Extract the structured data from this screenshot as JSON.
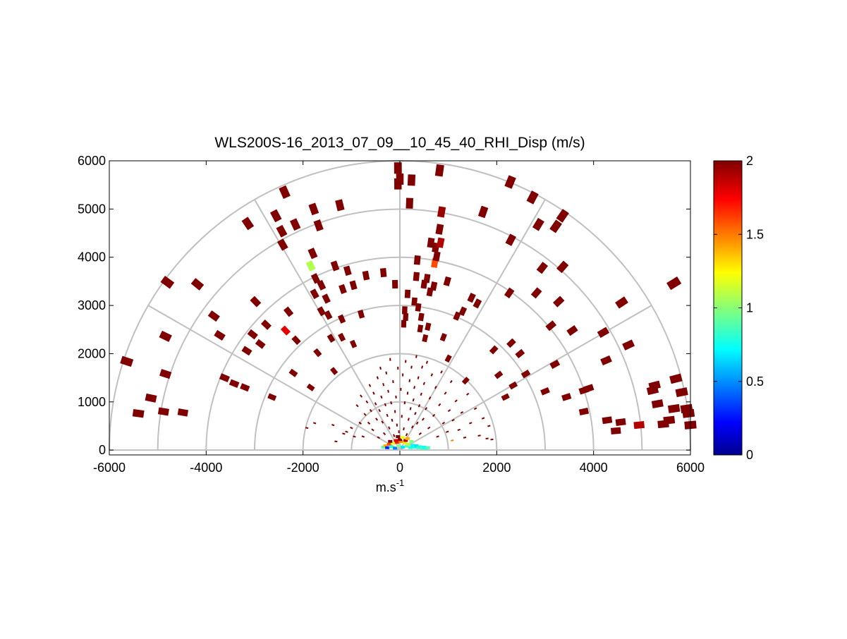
{
  "chart_data": {
    "type": "polar_rhi_scatter",
    "title": "WLS200S-16_2013_07_09__10_45_40_RHI_Disp (m/s)",
    "xlabel_base": "m.s",
    "xlabel_sup": "-1",
    "xlim": [
      -6000,
      6000
    ],
    "ylim": [
      -100,
      6000
    ],
    "xticks": [
      -6000,
      -4000,
      -2000,
      0,
      2000,
      4000,
      6000
    ],
    "yticks": [
      0,
      1000,
      2000,
      3000,
      4000,
      5000,
      6000
    ],
    "range_rings": [
      1000,
      2000,
      3000,
      4000,
      5000,
      6000
    ],
    "spoke_angles_deg": [
      0,
      30,
      60,
      90,
      120,
      150,
      180
    ],
    "grid": true,
    "colorbar": {
      "min": 0,
      "max": 2,
      "ticks": [
        "0",
        "0.5",
        "1",
        "1.5",
        "2"
      ],
      "colormap": "jet"
    },
    "colors": {
      "high_value": "#800000",
      "grid": "#c0c0c0"
    },
    "points": [
      {
        "x": -5640,
        "y": 1840,
        "v": 2
      },
      {
        "x": -5400,
        "y": 760,
        "v": 2
      },
      {
        "x": -5140,
        "y": 1080,
        "v": 2
      },
      {
        "x": -4880,
        "y": 800,
        "v": 2
      },
      {
        "x": -4840,
        "y": 1580,
        "v": 2
      },
      {
        "x": -4840,
        "y": 2360,
        "v": 2
      },
      {
        "x": -4800,
        "y": 3480,
        "v": 2
      },
      {
        "x": -4480,
        "y": 780,
        "v": 2
      },
      {
        "x": -4180,
        "y": 3440,
        "v": 2
      },
      {
        "x": -3840,
        "y": 2780,
        "v": 2
      },
      {
        "x": -3720,
        "y": 2380,
        "v": 2
      },
      {
        "x": -3620,
        "y": 1500,
        "v": 2
      },
      {
        "x": -3420,
        "y": 1380,
        "v": 2
      },
      {
        "x": -3200,
        "y": 1300,
        "v": 2
      },
      {
        "x": -3160,
        "y": 2060,
        "v": 2
      },
      {
        "x": -3140,
        "y": 4700,
        "v": 2
      },
      {
        "x": -3040,
        "y": 2400,
        "v": 2
      },
      {
        "x": -2980,
        "y": 3080,
        "v": 2
      },
      {
        "x": -2880,
        "y": 2200,
        "v": 2
      },
      {
        "x": -2760,
        "y": 2600,
        "v": 2
      },
      {
        "x": -2640,
        "y": 1100,
        "v": 2
      },
      {
        "x": -2560,
        "y": 4860,
        "v": 2
      },
      {
        "x": -2440,
        "y": 4540,
        "v": 2
      },
      {
        "x": -2420,
        "y": 4260,
        "v": 2
      },
      {
        "x": -2380,
        "y": 5350,
        "v": 2
      },
      {
        "x": -2360,
        "y": 2480,
        "v": 1.8
      },
      {
        "x": -2300,
        "y": 2870,
        "v": 2
      },
      {
        "x": -2200,
        "y": 1600,
        "v": 2
      },
      {
        "x": -2160,
        "y": 4680,
        "v": 2
      },
      {
        "x": -2140,
        "y": 2280,
        "v": 2
      },
      {
        "x": -1840,
        "y": 1300,
        "v": 2
      },
      {
        "x": -1840,
        "y": 3820,
        "v": 1.1
      },
      {
        "x": -1800,
        "y": 4080,
        "v": 2
      },
      {
        "x": -1780,
        "y": 5000,
        "v": 2
      },
      {
        "x": -1760,
        "y": 3240,
        "v": 2
      },
      {
        "x": -1740,
        "y": 3560,
        "v": 2
      },
      {
        "x": -1700,
        "y": 2020,
        "v": 2
      },
      {
        "x": -1680,
        "y": 4660,
        "v": 2
      },
      {
        "x": -1620,
        "y": 3420,
        "v": 2
      },
      {
        "x": -1620,
        "y": 2880,
        "v": 2
      },
      {
        "x": -1520,
        "y": 3140,
        "v": 2
      },
      {
        "x": -1480,
        "y": 2800,
        "v": 2
      },
      {
        "x": -1420,
        "y": 2320,
        "v": 2
      },
      {
        "x": -1360,
        "y": 1640,
        "v": 2
      },
      {
        "x": -1340,
        "y": 3820,
        "v": 2
      },
      {
        "x": -1240,
        "y": 5080,
        "v": 2
      },
      {
        "x": -1200,
        "y": 2720,
        "v": 2
      },
      {
        "x": -1200,
        "y": 2340,
        "v": 2
      },
      {
        "x": -1180,
        "y": 3340,
        "v": 2
      },
      {
        "x": -1080,
        "y": 3720,
        "v": 2
      },
      {
        "x": -960,
        "y": 3420,
        "v": 2
      },
      {
        "x": -960,
        "y": 2200,
        "v": 2
      },
      {
        "x": -800,
        "y": 2820,
        "v": 2
      },
      {
        "x": -700,
        "y": 3620,
        "v": 2
      },
      {
        "x": -340,
        "y": 3680,
        "v": 2
      },
      {
        "x": -100,
        "y": 3440,
        "v": 2
      },
      {
        "x": -40,
        "y": 5850,
        "v": 2
      },
      {
        "x": -40,
        "y": 5520,
        "v": 2
      },
      {
        "x": 0,
        "y": 5620,
        "v": 2
      },
      {
        "x": 80,
        "y": 2620,
        "v": 2
      },
      {
        "x": 100,
        "y": 2900,
        "v": 2
      },
      {
        "x": 120,
        "y": 2760,
        "v": 2
      },
      {
        "x": 160,
        "y": 3240,
        "v": 2
      },
      {
        "x": 200,
        "y": 5120,
        "v": 2
      },
      {
        "x": 240,
        "y": 5600,
        "v": 2
      },
      {
        "x": 300,
        "y": 3080,
        "v": 2
      },
      {
        "x": 340,
        "y": 3600,
        "v": 2
      },
      {
        "x": 360,
        "y": 3940,
        "v": 2
      },
      {
        "x": 380,
        "y": 2960,
        "v": 2
      },
      {
        "x": 420,
        "y": 2520,
        "v": 2
      },
      {
        "x": 440,
        "y": 2760,
        "v": 2
      },
      {
        "x": 500,
        "y": 3440,
        "v": 2
      },
      {
        "x": 520,
        "y": 2320,
        "v": 2
      },
      {
        "x": 560,
        "y": 3560,
        "v": 2
      },
      {
        "x": 580,
        "y": 2560,
        "v": 2
      },
      {
        "x": 620,
        "y": 3280,
        "v": 2
      },
      {
        "x": 640,
        "y": 4300,
        "v": 2
      },
      {
        "x": 700,
        "y": 3400,
        "v": 2
      },
      {
        "x": 720,
        "y": 3880,
        "v": 1.6
      },
      {
        "x": 740,
        "y": 4200,
        "v": 2
      },
      {
        "x": 760,
        "y": 4020,
        "v": 2
      },
      {
        "x": 820,
        "y": 5800,
        "v": 2
      },
      {
        "x": 820,
        "y": 4580,
        "v": 2
      },
      {
        "x": 840,
        "y": 4300,
        "v": 1.9
      },
      {
        "x": 860,
        "y": 4940,
        "v": 1.95
      },
      {
        "x": 900,
        "y": 2340,
        "v": 2
      },
      {
        "x": 980,
        "y": 3500,
        "v": 2
      },
      {
        "x": 1000,
        "y": 1900,
        "v": 2
      },
      {
        "x": 1180,
        "y": 2780,
        "v": 2
      },
      {
        "x": 1300,
        "y": 2880,
        "v": 2
      },
      {
        "x": 1360,
        "y": 1440,
        "v": 2
      },
      {
        "x": 1480,
        "y": 3160,
        "v": 2
      },
      {
        "x": 1600,
        "y": 3040,
        "v": 2
      },
      {
        "x": 1720,
        "y": 4940,
        "v": 2
      },
      {
        "x": 1940,
        "y": 2080,
        "v": 2
      },
      {
        "x": 2040,
        "y": 1560,
        "v": 2
      },
      {
        "x": 2180,
        "y": 1100,
        "v": 2
      },
      {
        "x": 2280,
        "y": 5560,
        "v": 2
      },
      {
        "x": 2340,
        "y": 1340,
        "v": 2
      },
      {
        "x": 2300,
        "y": 2220,
        "v": 2
      },
      {
        "x": 2260,
        "y": 3260,
        "v": 2
      },
      {
        "x": 2290,
        "y": 4360,
        "v": 2
      },
      {
        "x": 2480,
        "y": 2000,
        "v": 2
      },
      {
        "x": 2600,
        "y": 1580,
        "v": 2
      },
      {
        "x": 2740,
        "y": 5240,
        "v": 2
      },
      {
        "x": 2820,
        "y": 3260,
        "v": 2
      },
      {
        "x": 2860,
        "y": 4680,
        "v": 2
      },
      {
        "x": 2940,
        "y": 3780,
        "v": 2
      },
      {
        "x": 3000,
        "y": 1220,
        "v": 2
      },
      {
        "x": 3120,
        "y": 2580,
        "v": 2
      },
      {
        "x": 3200,
        "y": 1780,
        "v": 2
      },
      {
        "x": 3220,
        "y": 4640,
        "v": 2
      },
      {
        "x": 3280,
        "y": 3080,
        "v": 2
      },
      {
        "x": 3360,
        "y": 4860,
        "v": 2
      },
      {
        "x": 3360,
        "y": 3800,
        "v": 2
      },
      {
        "x": 3440,
        "y": 1100,
        "v": 2
      },
      {
        "x": 3560,
        "y": 2480,
        "v": 2
      },
      {
        "x": 3800,
        "y": 1240,
        "v": 2
      },
      {
        "x": 3800,
        "y": 800,
        "v": 2
      },
      {
        "x": 3900,
        "y": 1280,
        "v": 2
      },
      {
        "x": 4200,
        "y": 2440,
        "v": 2
      },
      {
        "x": 4260,
        "y": 1860,
        "v": 2
      },
      {
        "x": 4280,
        "y": 620,
        "v": 2
      },
      {
        "x": 4460,
        "y": 400,
        "v": 2
      },
      {
        "x": 4560,
        "y": 580,
        "v": 2
      },
      {
        "x": 4580,
        "y": 3060,
        "v": 2
      },
      {
        "x": 4720,
        "y": 2180,
        "v": 2
      },
      {
        "x": 5220,
        "y": 1240,
        "v": 2
      },
      {
        "x": 5260,
        "y": 1340,
        "v": 2
      },
      {
        "x": 5320,
        "y": 960,
        "v": 2
      },
      {
        "x": 5440,
        "y": 540,
        "v": 2
      },
      {
        "x": 5560,
        "y": 620,
        "v": 2
      },
      {
        "x": 5660,
        "y": 860,
        "v": 2
      },
      {
        "x": 5660,
        "y": 3460,
        "v": 2
      },
      {
        "x": 5700,
        "y": 1480,
        "v": 2
      },
      {
        "x": 5820,
        "y": 1200,
        "v": 2
      },
      {
        "x": 5920,
        "y": 860,
        "v": 2
      },
      {
        "x": 5960,
        "y": 760,
        "v": 2
      },
      {
        "x": 4940,
        "y": 520,
        "v": 1.9
      },
      {
        "x": 6000,
        "y": 520,
        "v": 2
      }
    ],
    "near_field_points": [
      {
        "x": -1160,
        "y": 340,
        "v": 2
      },
      {
        "x": -1100,
        "y": 380,
        "v": 2
      },
      {
        "x": -1000,
        "y": 460,
        "v": 2
      },
      {
        "x": -940,
        "y": 280,
        "v": 2
      },
      {
        "x": -880,
        "y": 920,
        "v": 2
      },
      {
        "x": -820,
        "y": 560,
        "v": 2
      },
      {
        "x": -800,
        "y": 1120,
        "v": 2
      },
      {
        "x": -760,
        "y": 280,
        "v": 2
      },
      {
        "x": -720,
        "y": 740,
        "v": 2
      },
      {
        "x": -680,
        "y": 1000,
        "v": 2
      },
      {
        "x": -640,
        "y": 560,
        "v": 2
      },
      {
        "x": -620,
        "y": 1340,
        "v": 2
      },
      {
        "x": -600,
        "y": 820,
        "v": 2
      },
      {
        "x": -560,
        "y": 420,
        "v": 2
      },
      {
        "x": -540,
        "y": 1180,
        "v": 2
      },
      {
        "x": -500,
        "y": 960,
        "v": 2
      },
      {
        "x": -480,
        "y": 640,
        "v": 2
      },
      {
        "x": -460,
        "y": 1500,
        "v": 2
      },
      {
        "x": -440,
        "y": 260,
        "v": 2
      },
      {
        "x": -420,
        "y": 820,
        "v": 2
      },
      {
        "x": -400,
        "y": 1700,
        "v": 2
      },
      {
        "x": -380,
        "y": 1100,
        "v": 2
      },
      {
        "x": -360,
        "y": 580,
        "v": 2
      },
      {
        "x": -340,
        "y": 1360,
        "v": 2
      },
      {
        "x": -320,
        "y": 340,
        "v": 2
      },
      {
        "x": -300,
        "y": 940,
        "v": 2
      },
      {
        "x": -280,
        "y": 1600,
        "v": 2
      },
      {
        "x": -260,
        "y": 720,
        "v": 2
      },
      {
        "x": -240,
        "y": 1220,
        "v": 2
      },
      {
        "x": -220,
        "y": 460,
        "v": 2
      },
      {
        "x": -200,
        "y": 1880,
        "v": 2
      },
      {
        "x": -180,
        "y": 980,
        "v": 2
      },
      {
        "x": -160,
        "y": 620,
        "v": 2
      },
      {
        "x": -140,
        "y": 1420,
        "v": 2
      },
      {
        "x": -120,
        "y": 300,
        "v": 2
      },
      {
        "x": -100,
        "y": 800,
        "v": 2
      },
      {
        "x": -80,
        "y": 1100,
        "v": 2
      },
      {
        "x": -60,
        "y": 520,
        "v": 2
      },
      {
        "x": -40,
        "y": 1700,
        "v": 2
      },
      {
        "x": -20,
        "y": 380,
        "v": 2
      },
      {
        "x": 20,
        "y": 1260,
        "v": 2
      },
      {
        "x": 40,
        "y": 700,
        "v": 2
      },
      {
        "x": 60,
        "y": 1560,
        "v": 2
      },
      {
        "x": 80,
        "y": 440,
        "v": 2
      },
      {
        "x": 100,
        "y": 980,
        "v": 2
      },
      {
        "x": 120,
        "y": 1840,
        "v": 2
      },
      {
        "x": 140,
        "y": 320,
        "v": 2
      },
      {
        "x": 160,
        "y": 1180,
        "v": 2
      },
      {
        "x": 180,
        "y": 640,
        "v": 2
      },
      {
        "x": 200,
        "y": 1440,
        "v": 2
      },
      {
        "x": 220,
        "y": 860,
        "v": 2
      },
      {
        "x": 240,
        "y": 1720,
        "v": 2
      },
      {
        "x": 260,
        "y": 480,
        "v": 2
      },
      {
        "x": 280,
        "y": 1040,
        "v": 2
      },
      {
        "x": 300,
        "y": 1300,
        "v": 2
      },
      {
        "x": 320,
        "y": 760,
        "v": 2
      },
      {
        "x": 340,
        "y": 1940,
        "v": 2
      },
      {
        "x": 360,
        "y": 560,
        "v": 2
      },
      {
        "x": 380,
        "y": 1500,
        "v": 2
      },
      {
        "x": 400,
        "y": 920,
        "v": 2
      },
      {
        "x": 420,
        "y": 340,
        "v": 2
      },
      {
        "x": 440,
        "y": 1160,
        "v": 2
      },
      {
        "x": 460,
        "y": 1720,
        "v": 2
      },
      {
        "x": 480,
        "y": 640,
        "v": 2
      },
      {
        "x": 500,
        "y": 1380,
        "v": 2
      },
      {
        "x": 540,
        "y": 860,
        "v": 2
      },
      {
        "x": 560,
        "y": 1820,
        "v": 2
      },
      {
        "x": 600,
        "y": 460,
        "v": 2
      },
      {
        "x": 620,
        "y": 1080,
        "v": 2
      },
      {
        "x": 660,
        "y": 1560,
        "v": 2
      },
      {
        "x": 700,
        "y": 720,
        "v": 2
      },
      {
        "x": 740,
        "y": 1300,
        "v": 2
      },
      {
        "x": 780,
        "y": 280,
        "v": 2
      },
      {
        "x": 820,
        "y": 940,
        "v": 2
      },
      {
        "x": 860,
        "y": 1620,
        "v": 2
      },
      {
        "x": 900,
        "y": 560,
        "v": 2
      },
      {
        "x": 940,
        "y": 1180,
        "v": 2
      },
      {
        "x": 980,
        "y": 380,
        "v": 2
      },
      {
        "x": 1020,
        "y": 820,
        "v": 2
      },
      {
        "x": 1060,
        "y": 1420,
        "v": 2
      },
      {
        "x": 1100,
        "y": 620,
        "v": 2
      },
      {
        "x": 1160,
        "y": 1020,
        "v": 2
      },
      {
        "x": 1220,
        "y": 420,
        "v": 2
      },
      {
        "x": 1280,
        "y": 780,
        "v": 2
      },
      {
        "x": 1340,
        "y": 260,
        "v": 2
      },
      {
        "x": 1400,
        "y": 1160,
        "v": 2
      },
      {
        "x": 1460,
        "y": 560,
        "v": 2
      },
      {
        "x": 1560,
        "y": 860,
        "v": 2
      },
      {
        "x": 1640,
        "y": 300,
        "v": 2
      },
      {
        "x": 1720,
        "y": 660,
        "v": 2
      },
      {
        "x": 1800,
        "y": 240,
        "v": 2
      },
      {
        "x": 1840,
        "y": 500,
        "v": 2
      },
      {
        "x": 1900,
        "y": 220,
        "v": 2
      },
      {
        "x": -1320,
        "y": 180,
        "v": 2
      },
      {
        "x": -1380,
        "y": 520,
        "v": 2
      },
      {
        "x": -1760,
        "y": 560,
        "v": 2
      },
      {
        "x": -1920,
        "y": 460,
        "v": 2
      },
      {
        "x": 1080,
        "y": 200,
        "v": 1.5
      }
    ],
    "origin_cluster": [
      {
        "x": -340,
        "y": 60,
        "v": 0.9
      },
      {
        "x": -300,
        "y": 90,
        "v": 1.4
      },
      {
        "x": -260,
        "y": 50,
        "v": 0.3
      },
      {
        "x": -220,
        "y": 120,
        "v": 1.6
      },
      {
        "x": -180,
        "y": 70,
        "v": 0.8
      },
      {
        "x": -140,
        "y": 140,
        "v": 1.2
      },
      {
        "x": -100,
        "y": 40,
        "v": 0.5
      },
      {
        "x": -60,
        "y": 160,
        "v": 1.7
      },
      {
        "x": -20,
        "y": 90,
        "v": 1.0
      },
      {
        "x": 20,
        "y": 180,
        "v": 1.5
      },
      {
        "x": 60,
        "y": 60,
        "v": 0.7
      },
      {
        "x": 100,
        "y": 150,
        "v": 1.3
      },
      {
        "x": 140,
        "y": 80,
        "v": 0.9
      },
      {
        "x": 180,
        "y": 120,
        "v": 1.1
      },
      {
        "x": 220,
        "y": 50,
        "v": 0.8
      },
      {
        "x": 260,
        "y": 100,
        "v": 0.75
      },
      {
        "x": 300,
        "y": 60,
        "v": 0.8
      },
      {
        "x": 340,
        "y": 90,
        "v": 0.7
      },
      {
        "x": 380,
        "y": 50,
        "v": 0.85
      },
      {
        "x": 420,
        "y": 70,
        "v": 0.8
      },
      {
        "x": 460,
        "y": 40,
        "v": 0.9
      },
      {
        "x": 500,
        "y": 60,
        "v": 0.75
      },
      {
        "x": 540,
        "y": 40,
        "v": 0.8
      },
      {
        "x": 580,
        "y": 50,
        "v": 0.9
      },
      {
        "x": 120,
        "y": 200,
        "v": 1.9
      },
      {
        "x": 0,
        "y": 220,
        "v": 2
      },
      {
        "x": -80,
        "y": 200,
        "v": 1.8
      },
      {
        "x": 60,
        "y": 260,
        "v": 1.2
      },
      {
        "x": -40,
        "y": 280,
        "v": 2
      },
      {
        "x": 160,
        "y": 240,
        "v": 1.4
      },
      {
        "x": -200,
        "y": 180,
        "v": 2
      },
      {
        "x": 240,
        "y": 180,
        "v": 1.0
      }
    ]
  }
}
